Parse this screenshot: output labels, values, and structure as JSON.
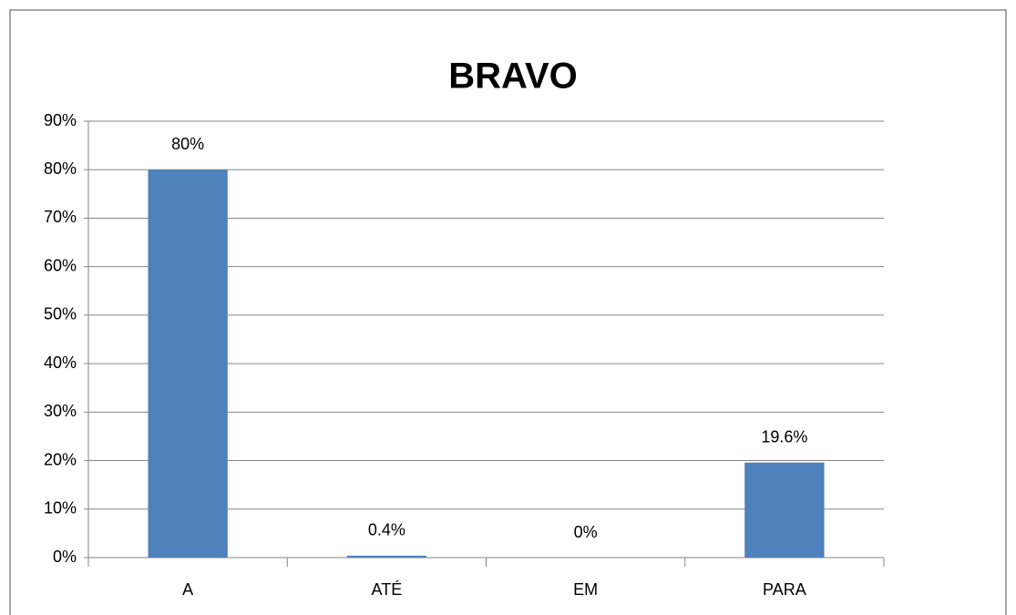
{
  "chart_data": {
    "type": "bar",
    "title": "BRAVO",
    "categories": [
      "A",
      "ATÉ",
      "EM",
      "PARA"
    ],
    "values": [
      80,
      0.4,
      0,
      19.6
    ],
    "value_labels": [
      "80%",
      "0.4%",
      "0%",
      "19.6%"
    ],
    "color": "#4f81bd",
    "ylim": [
      0,
      90
    ],
    "yticks": [
      {
        "value": 0,
        "label": "0%"
      },
      {
        "value": 10,
        "label": "10%"
      },
      {
        "value": 20,
        "label": "20%"
      },
      {
        "value": 30,
        "label": "30%"
      },
      {
        "value": 40,
        "label": "40%"
      },
      {
        "value": 50,
        "label": "50%"
      },
      {
        "value": 60,
        "label": "60%"
      },
      {
        "value": 70,
        "label": "70%"
      },
      {
        "value": 80,
        "label": "80%"
      },
      {
        "value": 90,
        "label": "90%"
      }
    ],
    "grid": true
  }
}
